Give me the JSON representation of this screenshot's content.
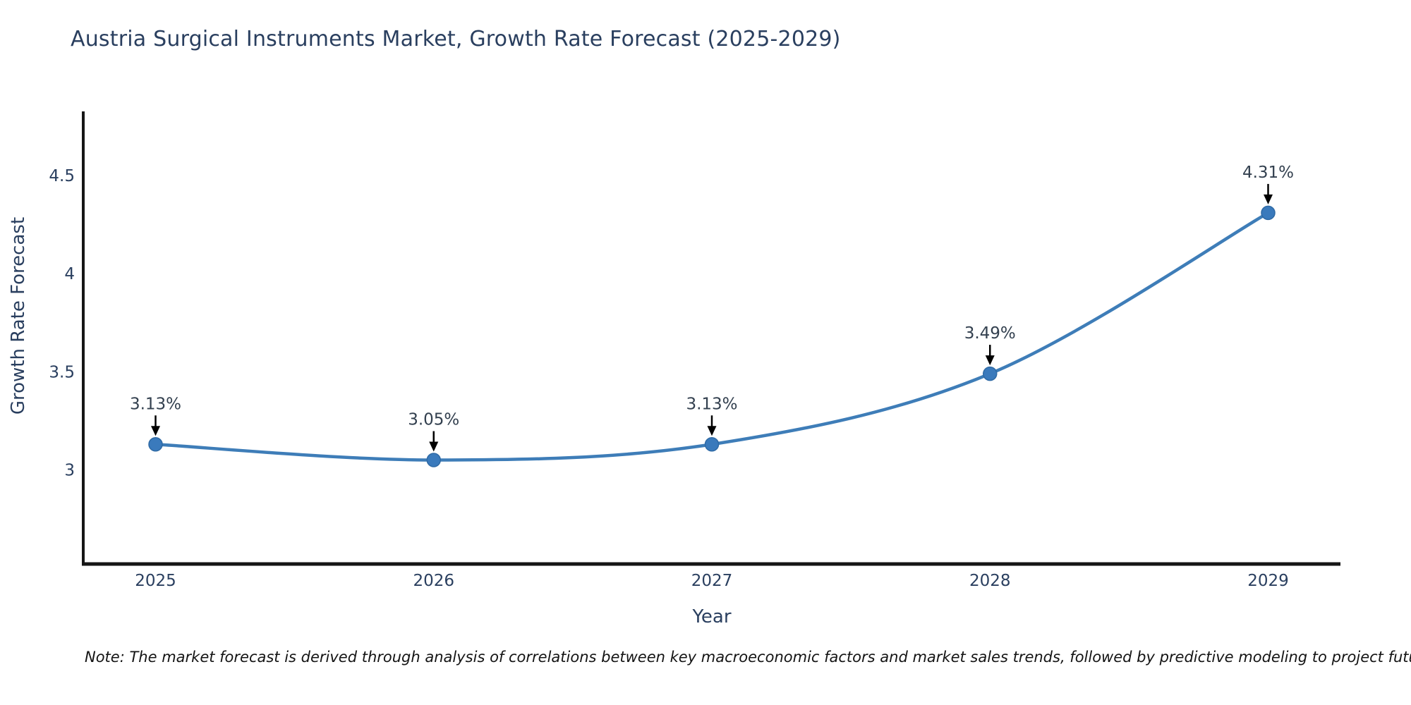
{
  "chart_data": {
    "type": "line",
    "line_shape": "spline",
    "title": "Austria Surgical Instruments Market, Growth Rate Forecast (2025-2029)",
    "xlabel": "Year",
    "ylabel": "Growth Rate Forecast",
    "x": [
      2025,
      2026,
      2027,
      2028,
      2029
    ],
    "xtick_labels": [
      "2025",
      "2026",
      "2027",
      "2028",
      "2029"
    ],
    "values": [
      3.13,
      3.05,
      3.13,
      3.49,
      4.31
    ],
    "point_labels": [
      "3.13%",
      "3.05%",
      "3.13%",
      "3.49%",
      "4.31%"
    ],
    "yticks": [
      3,
      3.5,
      4,
      4.5
    ],
    "ytick_labels": [
      "3",
      "3.5",
      "4",
      "4.5"
    ],
    "xlim": [
      2024.74,
      2029.26
    ],
    "ylim": [
      2.52,
      4.82
    ],
    "grid": false,
    "legend": null,
    "colors": {
      "line": "#3e7db8",
      "marker_fill": "#3a7abc",
      "marker_stroke": "#2f6aa5",
      "axis": "#161616",
      "title_text": "#2a3f5f",
      "tick_text": "#2a3f5f",
      "point_label_text": "#33404f",
      "arrow": "#000000",
      "background": "#ffffff"
    }
  },
  "note": "Note: The market forecast is derived through analysis of correlations between key macroeconomic factors and market sales trends, followed by predictive modeling to project future sales"
}
